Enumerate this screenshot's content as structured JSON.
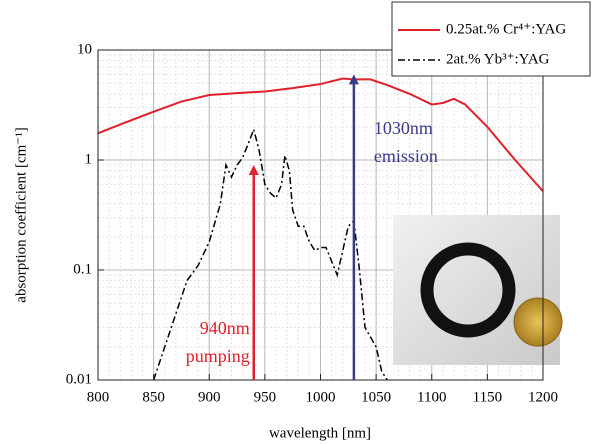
{
  "chart_data": {
    "type": "line",
    "log_y": true,
    "grid": true,
    "minor_grid": true,
    "xlabel": "wavelength [nm]",
    "ylabel": "absorption coefficient [cm⁻¹]",
    "xlim": [
      800,
      1200
    ],
    "xticks": [
      800,
      850,
      900,
      950,
      1000,
      1050,
      1100,
      1150,
      1200
    ],
    "ylim": [
      0.01,
      10
    ],
    "yticks": [
      0.01,
      0.1,
      1,
      10
    ],
    "legend": "top-right",
    "series": [
      {
        "name": "0.25at.% Cr⁴⁺:YAG",
        "color": "#e0202a",
        "dash": "solid",
        "x": [
          800,
          825,
          850,
          875,
          900,
          925,
          950,
          975,
          1000,
          1020,
          1030,
          1045,
          1060,
          1080,
          1100,
          1110,
          1120,
          1130,
          1150,
          1175,
          1200
        ],
        "values": [
          1.75,
          2.2,
          2.75,
          3.4,
          3.9,
          4.05,
          4.2,
          4.5,
          4.9,
          5.5,
          5.4,
          5.4,
          4.8,
          4.0,
          3.2,
          3.3,
          3.6,
          3.2,
          2.0,
          1.0,
          0.52
        ]
      },
      {
        "name": "2at.% Yb³⁺:YAG",
        "color": "#000000",
        "dash": "dashdot",
        "x": [
          850,
          860,
          870,
          880,
          890,
          900,
          910,
          915,
          920,
          925,
          930,
          935,
          940,
          945,
          950,
          955,
          960,
          965,
          968,
          972,
          975,
          980,
          985,
          990,
          995,
          1000,
          1005,
          1010,
          1015,
          1020,
          1025,
          1030,
          1035,
          1040,
          1050,
          1055,
          1060
        ],
        "values": [
          0.01,
          0.02,
          0.04,
          0.08,
          0.11,
          0.18,
          0.4,
          0.9,
          0.7,
          0.9,
          1.05,
          1.4,
          1.9,
          1.2,
          0.6,
          0.5,
          0.45,
          0.6,
          1.1,
          0.8,
          0.35,
          0.25,
          0.25,
          0.18,
          0.15,
          0.16,
          0.16,
          0.12,
          0.09,
          0.15,
          0.25,
          0.28,
          0.1,
          0.03,
          0.02,
          0.012,
          0.01
        ]
      }
    ],
    "annotations": [
      {
        "lines": [
          "940nm",
          "pumping"
        ],
        "x": 940,
        "y": 0.9,
        "color": "#e0202a"
      },
      {
        "lines": [
          "1030nm",
          "emission"
        ],
        "x": 1030,
        "y": 6,
        "color": "#3a3a8c"
      }
    ]
  }
}
